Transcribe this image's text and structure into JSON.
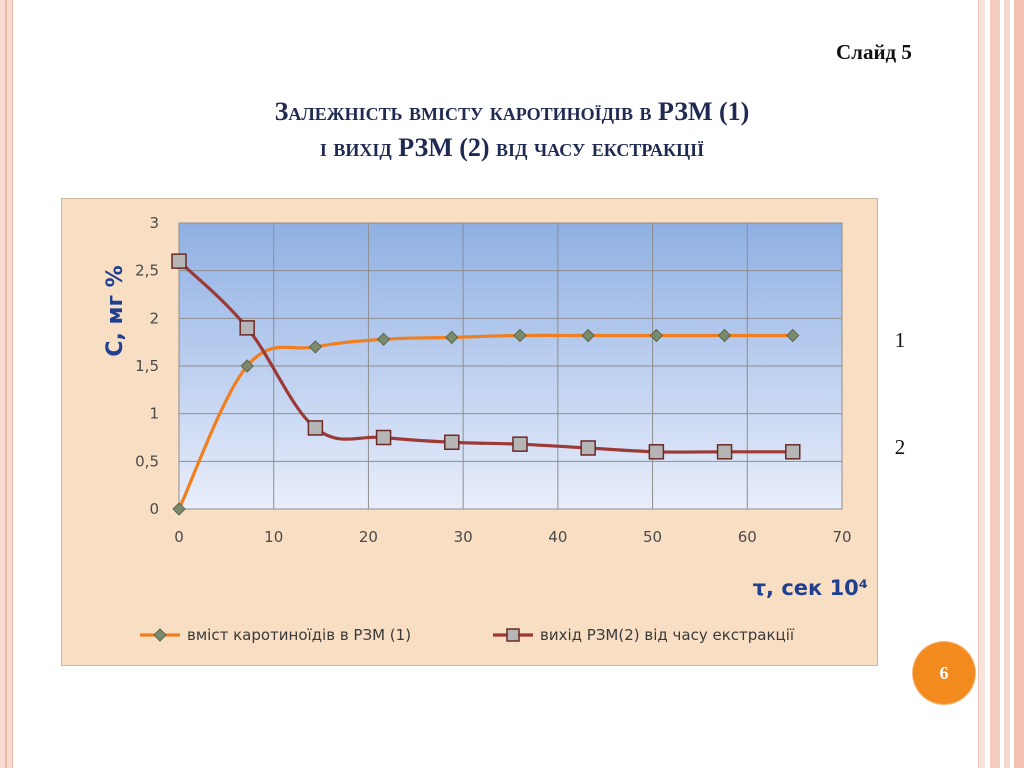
{
  "slide": {
    "label": "Слайд 5",
    "title_line1": "Залежність вмісту каротиноїдів в РЗМ (1)",
    "title_line2": "і вихід РЗМ (2) від часу екстракції",
    "side_labels": [
      "1",
      "2"
    ],
    "page_number": "6"
  },
  "colors": {
    "series1": "#f07f1f",
    "series2": "#9c3a36",
    "marker1": "#7a8a6a",
    "marker2": "#b5b5b5",
    "plot_top": "#8fb0e3",
    "plot_bottom": "#e9eefb",
    "chart_bg": "#f8dfc4"
  },
  "chart_data": {
    "type": "line",
    "xlabel": "τ, сек 10⁴",
    "ylabel": "С, мг %",
    "xlim": [
      0,
      70
    ],
    "ylim": [
      0,
      3
    ],
    "x_ticks": [
      0,
      10,
      20,
      30,
      40,
      50,
      60,
      70
    ],
    "y_ticks": [
      0,
      0.5,
      1,
      1.5,
      2,
      2.5,
      3
    ],
    "x_tick_labels": [
      "0",
      "10",
      "20",
      "30",
      "40",
      "50",
      "60",
      "70"
    ],
    "y_tick_labels": [
      "0",
      "0,5",
      "1",
      "1,5",
      "2",
      "2,5",
      "3"
    ],
    "grid": true,
    "legend": "bottom",
    "series": [
      {
        "name": "вміст каротиноїдів в РЗМ (1)",
        "marker": "diamond",
        "x": [
          0,
          7.2,
          14.4,
          21.6,
          28.8,
          36,
          43.2,
          50.4,
          57.6,
          64.8
        ],
        "y": [
          0,
          1.5,
          1.7,
          1.78,
          1.8,
          1.82,
          1.82,
          1.82,
          1.82,
          1.82
        ]
      },
      {
        "name": "вихід РЗМ(2) від часу екстракції",
        "marker": "square",
        "x": [
          0,
          7.2,
          14.4,
          21.6,
          28.8,
          36,
          43.2,
          50.4,
          57.6,
          64.8
        ],
        "y": [
          2.6,
          1.9,
          0.85,
          0.75,
          0.7,
          0.68,
          0.64,
          0.6,
          0.6,
          0.6
        ]
      }
    ]
  }
}
